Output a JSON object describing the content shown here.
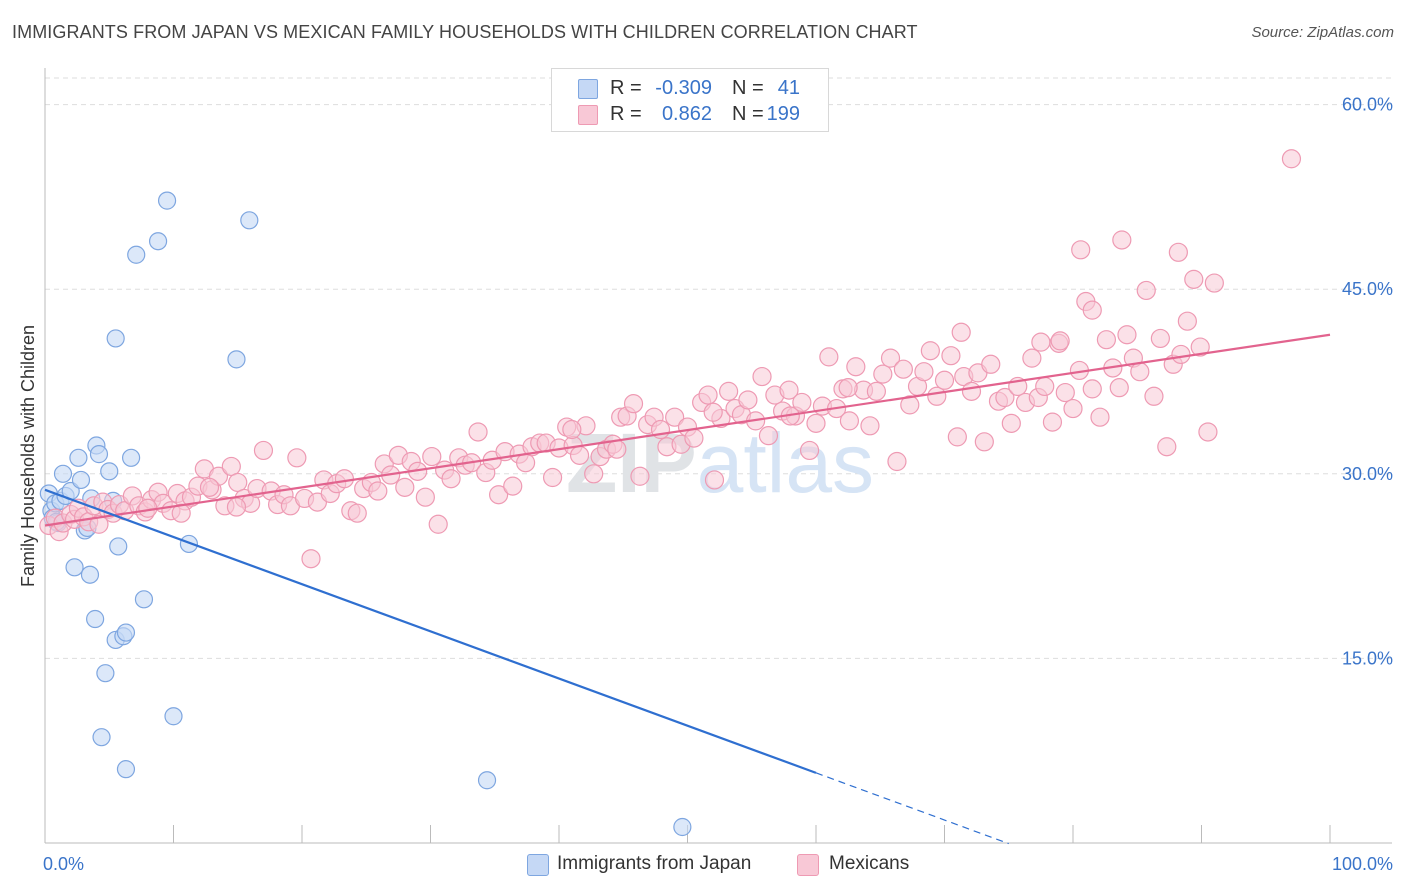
{
  "title": "IMMIGRANTS FROM JAPAN VS MEXICAN FAMILY HOUSEHOLDS WITH CHILDREN CORRELATION CHART",
  "source": "Source: ZipAtlas.com",
  "watermark": "ZIPatlas",
  "legend_stats": [
    {
      "r_label": "R =",
      "r_value": "-0.309",
      "n_label": "N =",
      "n_value": "41"
    },
    {
      "r_label": "R =",
      "r_value": "0.862",
      "n_label": "N =",
      "n_value": "199"
    }
  ],
  "colors": {
    "japan_fill": "#c5d8f5",
    "japan_stroke": "#7ea6e0",
    "japan_line": "#2f6fd0",
    "mexican_fill": "#f8c8d6",
    "mexican_stroke": "#ee9ab3",
    "mexican_line": "#e2638e",
    "axis_value": "#3a74c9",
    "grid": "#dddddd"
  },
  "chart_data": {
    "type": "scatter",
    "title": "IMMIGRANTS FROM JAPAN VS MEXICAN FAMILY HOUSEHOLDS WITH CHILDREN CORRELATION CHART",
    "xlabel": "",
    "ylabel": "Family Households with Children",
    "xlim": [
      0,
      100
    ],
    "ylim": [
      0,
      62
    ],
    "x_tick_labels": [
      "0.0%",
      "100.0%"
    ],
    "y_ticks": [
      15,
      30,
      45,
      60
    ],
    "y_tick_labels": [
      "15.0%",
      "30.0%",
      "45.0%",
      "60.0%"
    ],
    "grid": "horizontal dashed",
    "legend_position": "bottom",
    "series": [
      {
        "name": "Immigrants from Japan",
        "R": -0.309,
        "N": 41,
        "trend": {
          "x0": 0,
          "y0": 28.7,
          "x1": 60,
          "y1": 5.7,
          "dashed_to_x": 75
        },
        "points": [
          [
            0.3,
            28.4
          ],
          [
            0.5,
            27.0
          ],
          [
            0.6,
            26.4
          ],
          [
            0.8,
            27.6
          ],
          [
            1.0,
            26.0
          ],
          [
            1.2,
            27.8
          ],
          [
            1.4,
            30.0
          ],
          [
            1.6,
            28.2
          ],
          [
            2.0,
            28.6
          ],
          [
            2.3,
            22.4
          ],
          [
            2.6,
            31.3
          ],
          [
            2.8,
            29.5
          ],
          [
            3.1,
            25.4
          ],
          [
            3.3,
            25.6
          ],
          [
            3.5,
            21.8
          ],
          [
            3.6,
            28.0
          ],
          [
            3.9,
            18.2
          ],
          [
            4.0,
            32.3
          ],
          [
            4.2,
            31.6
          ],
          [
            4.4,
            8.6
          ],
          [
            4.7,
            13.8
          ],
          [
            5.0,
            30.2
          ],
          [
            5.3,
            27.8
          ],
          [
            5.5,
            41.0
          ],
          [
            5.7,
            24.1
          ],
          [
            5.5,
            16.5
          ],
          [
            6.1,
            16.8
          ],
          [
            6.3,
            17.1
          ],
          [
            6.3,
            6.0
          ],
          [
            6.7,
            31.3
          ],
          [
            7.1,
            47.8
          ],
          [
            7.7,
            19.8
          ],
          [
            8.8,
            48.9
          ],
          [
            9.5,
            52.2
          ],
          [
            10.0,
            10.3
          ],
          [
            11.2,
            24.3
          ],
          [
            14.9,
            39.3
          ],
          [
            15.9,
            50.6
          ],
          [
            34.4,
            5.1
          ],
          [
            49.6,
            1.3
          ],
          [
            0.9,
            26.1
          ]
        ]
      },
      {
        "name": "Mexicans",
        "R": 0.862,
        "N": 199,
        "trend": {
          "x0": 0,
          "y0": 25.8,
          "x1": 100,
          "y1": 41.3
        },
        "points": [
          [
            0.3,
            25.8
          ],
          [
            0.8,
            26.4
          ],
          [
            1.1,
            25.3
          ],
          [
            1.4,
            26.0
          ],
          [
            2.0,
            26.7
          ],
          [
            2.3,
            26.3
          ],
          [
            2.6,
            27.2
          ],
          [
            3.0,
            26.5
          ],
          [
            3.4,
            26.1
          ],
          [
            3.8,
            27.4
          ],
          [
            4.2,
            25.9
          ],
          [
            4.5,
            27.7
          ],
          [
            4.9,
            27.1
          ],
          [
            5.3,
            26.8
          ],
          [
            5.8,
            27.5
          ],
          [
            6.2,
            27.0
          ],
          [
            6.8,
            28.2
          ],
          [
            7.3,
            27.4
          ],
          [
            7.8,
            26.9
          ],
          [
            8.3,
            27.9
          ],
          [
            8.8,
            28.5
          ],
          [
            9.2,
            27.6
          ],
          [
            9.8,
            27.0
          ],
          [
            10.3,
            28.4
          ],
          [
            10.9,
            27.8
          ],
          [
            11.4,
            28.1
          ],
          [
            11.9,
            29.0
          ],
          [
            12.4,
            30.4
          ],
          [
            13.0,
            28.7
          ],
          [
            13.5,
            29.8
          ],
          [
            14.0,
            27.4
          ],
          [
            14.5,
            30.6
          ],
          [
            15.0,
            29.3
          ],
          [
            15.5,
            28.0
          ],
          [
            16.0,
            27.6
          ],
          [
            16.5,
            28.8
          ],
          [
            17.0,
            31.9
          ],
          [
            17.6,
            28.6
          ],
          [
            18.1,
            27.5
          ],
          [
            18.6,
            28.3
          ],
          [
            19.1,
            27.4
          ],
          [
            19.6,
            31.3
          ],
          [
            20.2,
            28.0
          ],
          [
            20.7,
            23.1
          ],
          [
            21.2,
            27.7
          ],
          [
            21.7,
            29.5
          ],
          [
            22.2,
            28.4
          ],
          [
            22.7,
            29.2
          ],
          [
            23.3,
            29.6
          ],
          [
            23.8,
            27.0
          ],
          [
            24.3,
            26.8
          ],
          [
            24.8,
            28.8
          ],
          [
            25.4,
            29.3
          ],
          [
            25.9,
            28.6
          ],
          [
            26.4,
            30.8
          ],
          [
            26.9,
            29.9
          ],
          [
            27.5,
            31.5
          ],
          [
            28.0,
            28.9
          ],
          [
            28.5,
            31.0
          ],
          [
            29.0,
            30.2
          ],
          [
            29.6,
            28.1
          ],
          [
            30.1,
            31.4
          ],
          [
            30.6,
            25.9
          ],
          [
            31.1,
            30.3
          ],
          [
            31.6,
            29.6
          ],
          [
            32.2,
            31.3
          ],
          [
            32.7,
            30.7
          ],
          [
            33.2,
            30.9
          ],
          [
            33.7,
            33.4
          ],
          [
            34.3,
            30.1
          ],
          [
            34.8,
            31.1
          ],
          [
            35.3,
            28.3
          ],
          [
            35.8,
            31.8
          ],
          [
            36.4,
            29.0
          ],
          [
            36.9,
            31.6
          ],
          [
            37.4,
            30.9
          ],
          [
            37.9,
            32.2
          ],
          [
            38.5,
            32.5
          ],
          [
            39.0,
            32.5
          ],
          [
            39.5,
            29.7
          ],
          [
            40.0,
            32.1
          ],
          [
            40.6,
            33.8
          ],
          [
            41.1,
            32.3
          ],
          [
            41.6,
            31.5
          ],
          [
            42.1,
            33.9
          ],
          [
            42.7,
            30.0
          ],
          [
            43.2,
            31.4
          ],
          [
            43.7,
            32.0
          ],
          [
            44.2,
            32.4
          ],
          [
            44.8,
            34.6
          ],
          [
            45.3,
            34.7
          ],
          [
            45.8,
            35.7
          ],
          [
            46.3,
            29.8
          ],
          [
            46.9,
            34.0
          ],
          [
            47.4,
            34.6
          ],
          [
            47.9,
            33.6
          ],
          [
            48.4,
            32.2
          ],
          [
            49.0,
            34.6
          ],
          [
            49.5,
            32.4
          ],
          [
            50.0,
            33.8
          ],
          [
            50.5,
            32.9
          ],
          [
            51.1,
            35.8
          ],
          [
            51.6,
            36.4
          ],
          [
            52.1,
            29.5
          ],
          [
            52.6,
            34.5
          ],
          [
            53.2,
            36.7
          ],
          [
            53.7,
            35.3
          ],
          [
            54.2,
            34.8
          ],
          [
            54.7,
            36.0
          ],
          [
            55.3,
            34.3
          ],
          [
            55.8,
            37.9
          ],
          [
            56.3,
            33.1
          ],
          [
            56.8,
            36.4
          ],
          [
            57.4,
            35.1
          ],
          [
            57.9,
            36.8
          ],
          [
            58.4,
            34.7
          ],
          [
            58.9,
            35.8
          ],
          [
            59.5,
            31.9
          ],
          [
            60.0,
            34.1
          ],
          [
            60.5,
            35.5
          ],
          [
            61.0,
            39.5
          ],
          [
            61.6,
            35.3
          ],
          [
            62.1,
            36.9
          ],
          [
            62.6,
            34.3
          ],
          [
            63.1,
            38.7
          ],
          [
            63.7,
            36.8
          ],
          [
            64.2,
            33.9
          ],
          [
            64.7,
            36.7
          ],
          [
            65.2,
            38.1
          ],
          [
            65.8,
            39.4
          ],
          [
            66.3,
            31.0
          ],
          [
            66.8,
            38.5
          ],
          [
            67.3,
            35.6
          ],
          [
            67.9,
            37.1
          ],
          [
            68.4,
            38.3
          ],
          [
            68.9,
            40.0
          ],
          [
            69.4,
            36.3
          ],
          [
            70.0,
            37.6
          ],
          [
            70.5,
            39.6
          ],
          [
            71.0,
            33.0
          ],
          [
            71.5,
            37.9
          ],
          [
            72.1,
            36.7
          ],
          [
            72.6,
            38.2
          ],
          [
            73.1,
            32.6
          ],
          [
            73.6,
            38.9
          ],
          [
            74.2,
            35.9
          ],
          [
            74.7,
            36.2
          ],
          [
            75.2,
            34.1
          ],
          [
            75.7,
            37.1
          ],
          [
            76.3,
            35.8
          ],
          [
            76.8,
            39.4
          ],
          [
            77.3,
            36.2
          ],
          [
            77.8,
            37.1
          ],
          [
            78.4,
            34.2
          ],
          [
            78.9,
            40.6
          ],
          [
            79.4,
            36.6
          ],
          [
            80.0,
            35.3
          ],
          [
            80.5,
            38.4
          ],
          [
            81.0,
            44.0
          ],
          [
            81.5,
            36.9
          ],
          [
            82.1,
            34.6
          ],
          [
            82.6,
            40.9
          ],
          [
            83.1,
            38.6
          ],
          [
            83.6,
            37.0
          ],
          [
            84.2,
            41.3
          ],
          [
            84.7,
            39.4
          ],
          [
            85.2,
            38.3
          ],
          [
            85.7,
            44.9
          ],
          [
            86.3,
            36.3
          ],
          [
            86.8,
            41.0
          ],
          [
            87.3,
            32.2
          ],
          [
            87.8,
            38.9
          ],
          [
            88.4,
            39.7
          ],
          [
            88.9,
            42.4
          ],
          [
            89.4,
            45.8
          ],
          [
            89.9,
            40.3
          ],
          [
            90.5,
            33.4
          ],
          [
            91.0,
            45.5
          ],
          [
            83.8,
            49.0
          ],
          [
            88.2,
            48.0
          ],
          [
            80.6,
            48.2
          ],
          [
            81.5,
            43.3
          ],
          [
            97.0,
            55.6
          ],
          [
            41.0,
            33.6
          ],
          [
            44.5,
            32.0
          ],
          [
            52.0,
            35.0
          ],
          [
            58.0,
            34.7
          ],
          [
            62.5,
            37.0
          ],
          [
            71.3,
            41.5
          ],
          [
            77.5,
            40.7
          ],
          [
            79.0,
            40.8
          ],
          [
            8.0,
            27.2
          ],
          [
            10.6,
            26.8
          ],
          [
            12.8,
            28.9
          ],
          [
            14.9,
            27.3
          ]
        ]
      }
    ]
  },
  "axis_text": {
    "x_left": "0.0%",
    "x_right": "100.0%",
    "y_ticks": [
      "60.0%",
      "45.0%",
      "30.0%",
      "15.0%"
    ]
  }
}
